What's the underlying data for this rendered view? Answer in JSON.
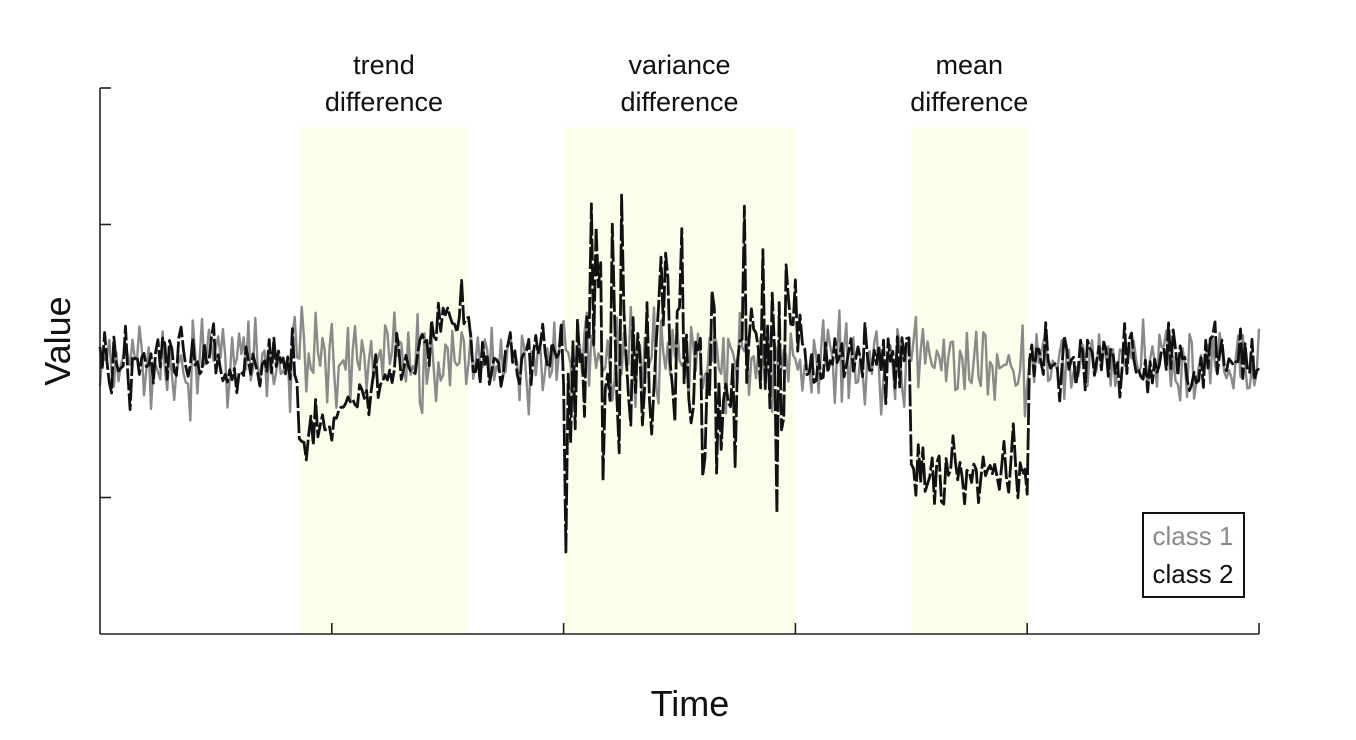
{
  "chart_data": {
    "type": "line",
    "title": "",
    "xlabel": "Time",
    "ylabel": "Value",
    "xlim": [
      0,
      500
    ],
    "ylim": [
      -4,
      4
    ],
    "grid": false,
    "legend_placement": "bottom-right",
    "regions": [
      {
        "name": "trend-difference",
        "lines": [
          "trend",
          "difference"
        ],
        "x_start": 86,
        "x_end": 159
      },
      {
        "name": "variance-difference",
        "lines": [
          "variance",
          "difference"
        ],
        "x_start": 200,
        "x_end": 300
      },
      {
        "name": "mean-difference",
        "lines": [
          "mean",
          "difference"
        ],
        "x_start": 350,
        "x_end": 400
      }
    ],
    "region_color": "#fdfdeb",
    "series": [
      {
        "name": "class 1",
        "color": "#8a8a8a",
        "style": "solid"
      },
      {
        "name": "class 2",
        "color": "#111111",
        "style": "solid-with-gaps"
      }
    ],
    "generator": {
      "samples": 501,
      "base_noise": 0.4,
      "class1_wiggle": 0.45,
      "trend": {
        "start_value": -1.2,
        "end_value": 0.8
      },
      "variance_noise": 1.6,
      "mean_shift": -1.6
    }
  }
}
